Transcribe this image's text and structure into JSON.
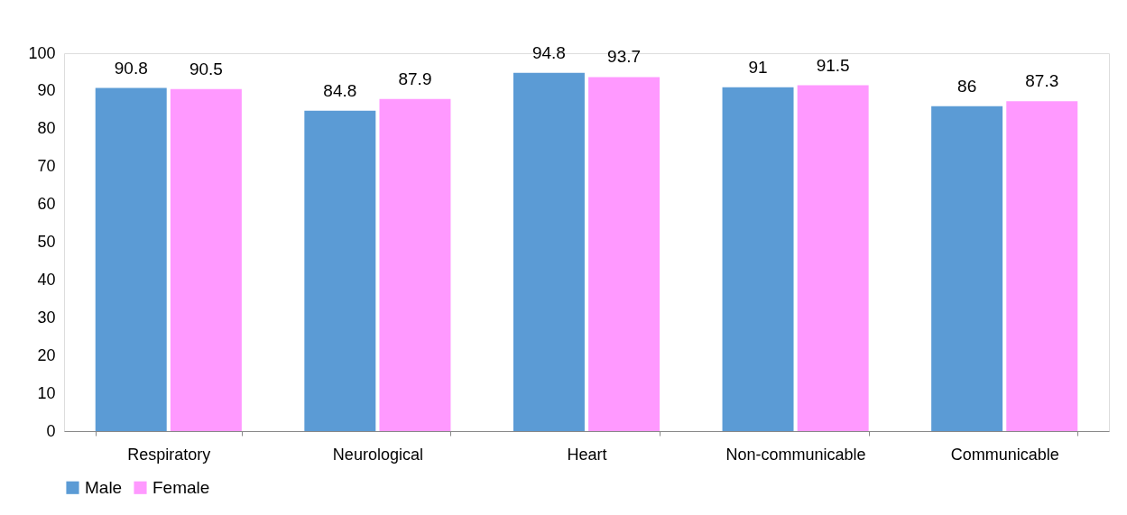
{
  "chart_data": {
    "type": "bar",
    "categories": [
      "Respiratory",
      "Neurological",
      "Heart",
      "Non-communicable",
      "Communicable"
    ],
    "series": [
      {
        "name": "Male",
        "color": "#5b9bd5",
        "values": [
          90.8,
          84.8,
          94.8,
          91,
          86
        ]
      },
      {
        "name": "Female",
        "color": "#ff99ff",
        "values": [
          90.5,
          87.9,
          93.7,
          91.5,
          87.3
        ]
      }
    ],
    "ylim": [
      0,
      100
    ],
    "yticks": [
      0,
      10,
      20,
      30,
      40,
      50,
      60,
      70,
      80,
      90,
      100
    ],
    "grid": false,
    "legend": "bottom",
    "data_labels": true
  }
}
